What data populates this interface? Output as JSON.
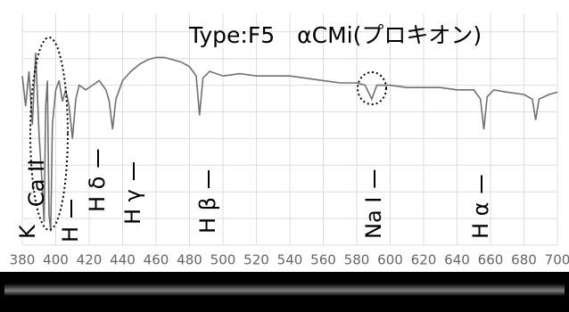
{
  "chart_data": {
    "type": "line",
    "title": "Type:F5　αCMi(プロキオン)",
    "x": [
      380,
      382,
      384,
      386,
      388,
      390,
      392,
      393,
      394,
      395,
      396,
      397,
      398,
      400,
      402,
      404,
      406,
      408,
      410,
      412,
      414,
      418,
      422,
      426,
      430,
      432,
      434,
      436,
      440,
      445,
      450,
      455,
      460,
      465,
      470,
      475,
      480,
      484,
      486,
      488,
      492,
      500,
      510,
      520,
      530,
      540,
      550,
      560,
      570,
      580,
      585,
      589,
      592,
      600,
      610,
      620,
      630,
      640,
      650,
      654,
      656,
      658,
      662,
      670,
      680,
      685,
      687,
      689,
      695,
      700
    ],
    "series": [
      {
        "color": "#707070",
        "values": [
          73,
          60,
          75,
          52,
          83,
          48,
          25,
          10,
          60,
          71,
          13,
          6,
          52,
          67,
          71,
          62,
          67,
          60,
          46,
          63,
          69,
          67,
          69,
          71,
          67,
          62,
          50,
          63,
          71,
          75,
          78,
          80,
          81,
          81,
          80,
          79,
          77,
          73,
          56,
          72,
          75,
          73,
          74,
          73,
          73,
          73,
          72,
          71,
          70,
          70,
          69,
          63,
          69,
          69,
          68,
          68,
          68,
          67,
          67,
          63,
          50,
          64,
          67,
          66,
          65,
          63,
          54,
          63,
          65,
          66
        ]
      }
    ],
    "xlim": [
      380,
      700
    ],
    "xticks": [
      380,
      400,
      420,
      440,
      460,
      480,
      500,
      520,
      540,
      560,
      580,
      600,
      620,
      640,
      660,
      680,
      700
    ],
    "ylim": [
      0,
      100
    ],
    "yticks": [
      0,
      11.5,
      23,
      34.5,
      46,
      57.5,
      69,
      80.5,
      92
    ],
    "grid": true,
    "annotations": [
      "K",
      "Ca II",
      "H",
      "H δ",
      "H γ",
      "H β",
      "Na I",
      "H α"
    ]
  }
}
